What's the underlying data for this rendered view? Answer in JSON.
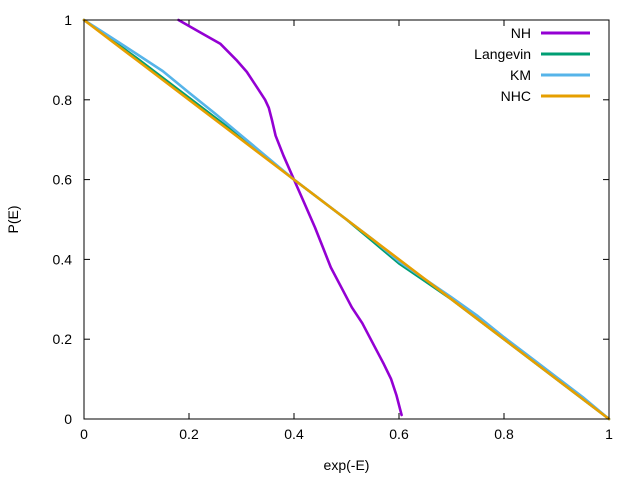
{
  "chart_data": {
    "type": "line",
    "title": "",
    "xlabel": "exp(-E)",
    "ylabel": "P(E)",
    "xlim": [
      0,
      1
    ],
    "ylim": [
      0,
      1
    ],
    "x_ticks": [
      "0",
      "0.2",
      "0.4",
      "0.6",
      "0.8",
      "1"
    ],
    "y_ticks": [
      "0",
      "0.2",
      "0.4",
      "0.6",
      "0.8",
      "1"
    ],
    "grid": false,
    "legend_position": "top-right",
    "series": [
      {
        "name": "NH",
        "color": "#9400d3",
        "x": [
          0.18,
          0.22,
          0.26,
          0.29,
          0.31,
          0.33,
          0.345,
          0.352,
          0.358,
          0.365,
          0.38,
          0.4,
          0.42,
          0.44,
          0.455,
          0.47,
          0.49,
          0.51,
          0.53,
          0.55,
          0.57,
          0.585,
          0.595,
          0.605
        ],
        "y": [
          1.0,
          0.97,
          0.94,
          0.9,
          0.87,
          0.83,
          0.8,
          0.78,
          0.75,
          0.71,
          0.66,
          0.6,
          0.54,
          0.48,
          0.43,
          0.38,
          0.33,
          0.28,
          0.24,
          0.19,
          0.14,
          0.1,
          0.06,
          0.01
        ]
      },
      {
        "name": "Langevin",
        "color": "#009e73",
        "x": [
          0.0,
          0.1,
          0.2,
          0.3,
          0.4,
          0.5,
          0.55,
          0.6,
          0.65,
          0.7,
          0.8,
          0.9,
          1.0
        ],
        "y": [
          1.0,
          0.905,
          0.805,
          0.705,
          0.6,
          0.5,
          0.445,
          0.39,
          0.345,
          0.3,
          0.2,
          0.1,
          0.0
        ]
      },
      {
        "name": "KM",
        "color": "#56b4e9",
        "x": [
          0.0,
          0.05,
          0.1,
          0.15,
          0.2,
          0.25,
          0.3,
          0.35,
          0.4,
          0.45,
          0.5,
          0.55,
          0.6,
          0.65,
          0.7,
          0.75,
          0.8,
          0.85,
          0.9,
          0.95,
          1.0
        ],
        "y": [
          1.0,
          0.958,
          0.915,
          0.872,
          0.818,
          0.765,
          0.71,
          0.655,
          0.6,
          0.55,
          0.5,
          0.45,
          0.395,
          0.35,
          0.305,
          0.258,
          0.205,
          0.155,
          0.105,
          0.055,
          0.0
        ]
      },
      {
        "name": "NHC",
        "color": "#e69f00",
        "x": [
          0.0,
          0.1,
          0.2,
          0.3,
          0.4,
          0.5,
          0.6,
          0.7,
          0.8,
          0.9,
          1.0
        ],
        "y": [
          1.0,
          0.9,
          0.8,
          0.7,
          0.6,
          0.5,
          0.4,
          0.3,
          0.2,
          0.1,
          0.0
        ]
      }
    ]
  }
}
